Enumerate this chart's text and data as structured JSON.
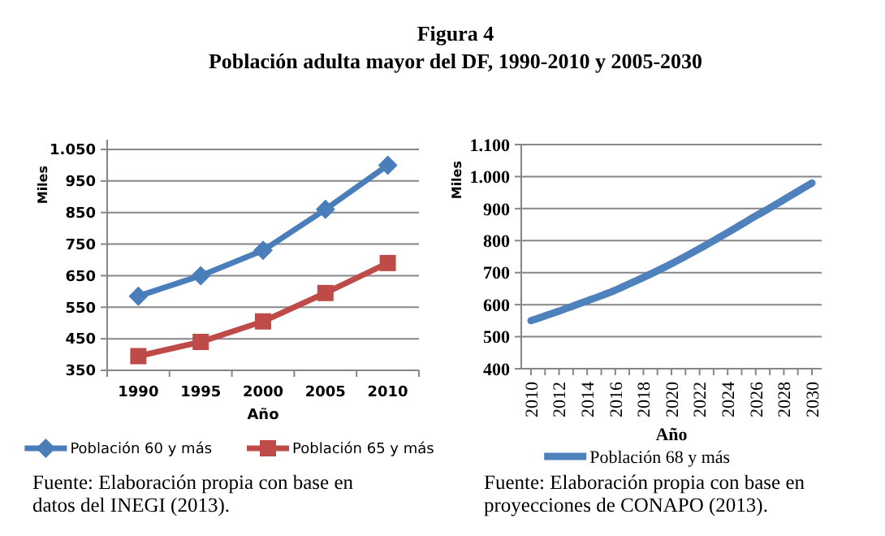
{
  "chart_data": [
    {
      "type": "line",
      "title": "Figura 4",
      "subtitle": "Población adulta mayor del DF, 1990-2010 y 2005-2030",
      "xlabel": "Año",
      "ylabel": "Miles",
      "categories": [
        "1990",
        "1995",
        "2000",
        "2005",
        "2010"
      ],
      "series": [
        {
          "name": "Población 60 y más",
          "color": "#4a7ebb",
          "marker": "diamond",
          "values": [
            585,
            650,
            730,
            860,
            1000
          ]
        },
        {
          "name": "Población 65 y más",
          "color": "#be4b48",
          "marker": "square",
          "values": [
            395,
            440,
            505,
            595,
            690
          ]
        }
      ],
      "ylim": [
        350,
        1050
      ],
      "yticks": [
        350,
        450,
        550,
        650,
        750,
        850,
        950,
        {
          "value": 1050,
          "label": "1.050"
        }
      ],
      "grid": "y",
      "legend": "bottom",
      "line_style": "solid",
      "annotations": [
        "Fuente: Elaboración propia con base en datos del INEGI (2013)."
      ]
    },
    {
      "type": "line",
      "xlabel": "Año",
      "ylabel": "Miles",
      "categories": [
        "2010",
        null,
        "2012",
        null,
        "2014",
        null,
        "2016",
        null,
        "2018",
        null,
        "2020",
        null,
        "2022",
        null,
        "2024",
        null,
        "2026",
        null,
        "2028",
        null,
        "2030"
      ],
      "series": [
        {
          "name": "Población 68 y más",
          "color": "#4f81bd",
          "marker": "none",
          "values": [
            550,
            565,
            580,
            596,
            612,
            628,
            645,
            665,
            685,
            706,
            728,
            751,
            775,
            800,
            825,
            851,
            877,
            902,
            928,
            954,
            980
          ]
        }
      ],
      "ylim": [
        400,
        1100
      ],
      "yticks": [
        400,
        500,
        600,
        700,
        800,
        900,
        {
          "value": 1000,
          "label": "1.000"
        },
        {
          "value": 1100,
          "label": "1.100"
        }
      ],
      "grid": "y",
      "legend": "bottom",
      "line_style": "solid",
      "annotations": [
        "Fuente: Elaboración propia con base en proyecciones de CONAPO (2013)."
      ]
    }
  ]
}
